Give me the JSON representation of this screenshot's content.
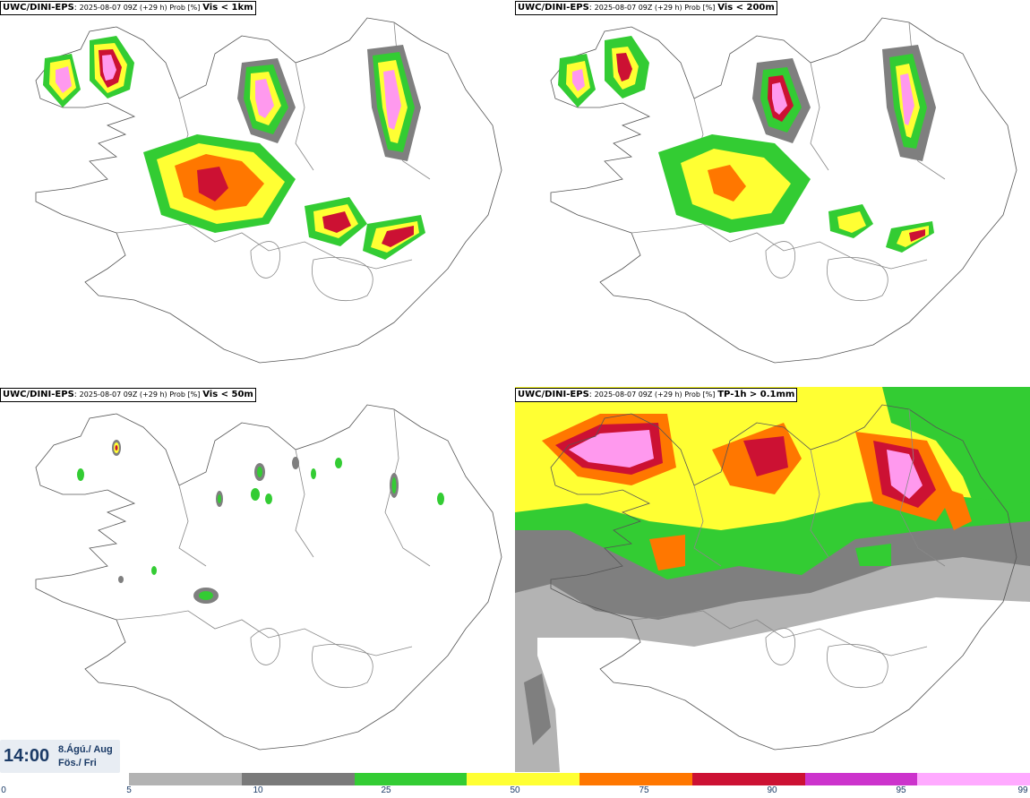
{
  "panels": [
    {
      "model": "UWC/DINI-EPS",
      "run": "2025-08-07 09Z (+29 h) Prob [%]",
      "variable": "Vis < 1km"
    },
    {
      "model": "UWC/DINI-EPS",
      "run": "2025-08-07 09Z (+29 h) Prob [%]",
      "variable": "Vis < 200m"
    },
    {
      "model": "UWC/DINI-EPS",
      "run": "2025-08-07 09Z (+29 h) Prob [%]",
      "variable": "Vis < 50m"
    },
    {
      "model": "UWC/DINI-EPS",
      "run": "2025-08-07 09Z (+29 h) Prob [%]",
      "variable": "TP-1h > 0.1mm"
    }
  ],
  "valid_time": {
    "clock": "14:00",
    "date_line1": "8.Ágú./ Aug",
    "date_line2": "Fös./ Fri"
  },
  "legend": {
    "ticks": [
      "0",
      "5",
      "10",
      "25",
      "50",
      "75",
      "90",
      "95",
      "99"
    ],
    "colors": [
      "#b3b3b3",
      "#7a7a7a",
      "#33cc33",
      "#ffff33",
      "#ff7700",
      "#cc1133",
      "#cc33cc",
      "#ffaaff"
    ]
  },
  "map_colors": {
    "gray_light": "#b3b3b3",
    "gray_dark": "#7f7f7f",
    "green": "#33cc33",
    "yellow": "#ffff33",
    "orange": "#ff7700",
    "red": "#cc1133",
    "magenta": "#cc33cc",
    "pink": "#ff99ee",
    "coast": "#555555"
  }
}
